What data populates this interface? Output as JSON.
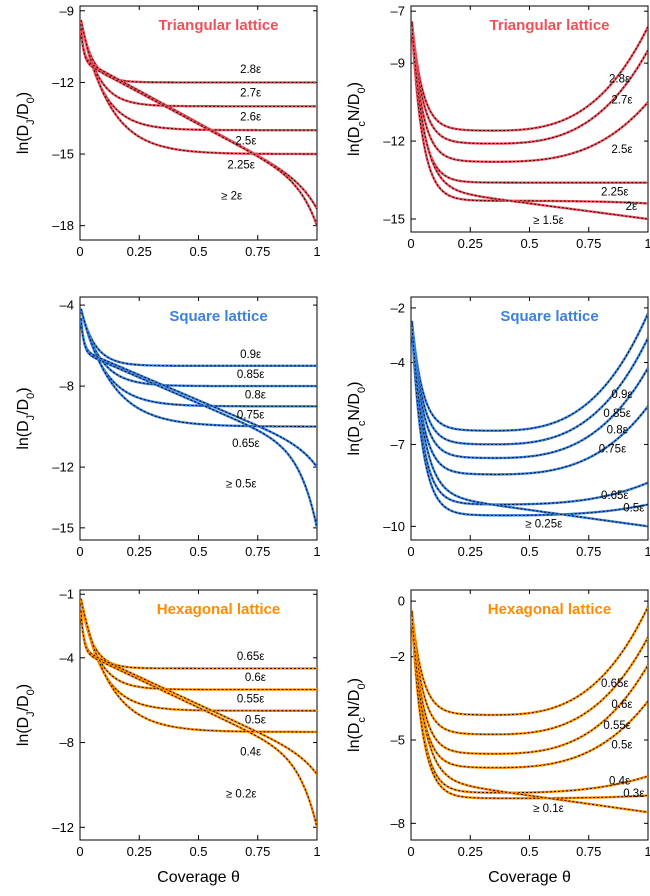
{
  "x_axis_label": "Coverage θ",
  "chart_data": [
    {
      "type": "line",
      "title": "Triangular lattice",
      "ylabel": "ln(D_J/D_0)",
      "color": "#f0505a",
      "xlim": [
        0,
        1
      ],
      "ylim": [
        -18.6,
        -8.8
      ],
      "xticks": [
        0,
        0.25,
        0.5,
        0.75,
        1
      ],
      "xtick_labels": [
        "0",
        "0.25",
        "0.5",
        "0.75",
        "1"
      ],
      "yticks": [
        -9,
        -12,
        -15,
        -18
      ],
      "ytick_labels": [
        "–9",
        "–12",
        "–15",
        "–18"
      ],
      "series": [
        {
          "name": "2.8ε",
          "kind": "plateau",
          "y0": -9.2,
          "yinf": -12.0,
          "t": 0.05,
          "label_x": 0.72,
          "label_y": -11.6
        },
        {
          "name": "2.7ε",
          "kind": "plateau",
          "y0": -9.2,
          "yinf": -13.0,
          "t": 0.07,
          "label_x": 0.72,
          "label_y": -12.6
        },
        {
          "name": "2.6ε",
          "kind": "plateau",
          "y0": -9.2,
          "yinf": -14.0,
          "t": 0.09,
          "label_x": 0.72,
          "label_y": -13.6
        },
        {
          "name": "2.5ε",
          "kind": "plateau",
          "y0": -9.2,
          "yinf": -15.0,
          "t": 0.12,
          "label_x": 0.7,
          "label_y": -14.6
        },
        {
          "name": "2.25ε",
          "kind": "tail",
          "y0": -9.2,
          "ya": -11.0,
          "yb": -16.4,
          "yend": -17.3,
          "label_x": 0.68,
          "label_y": -15.6
        },
        {
          "name": "≥ 2ε",
          "kind": "tail",
          "y0": -9.2,
          "ya": -11.1,
          "yb": -16.4,
          "yend": -18.0,
          "label_x": 0.64,
          "label_y": -16.9
        }
      ]
    },
    {
      "type": "line",
      "title": "Triangular lattice",
      "ylabel": "ln(D_cN/D_0)",
      "color": "#f0505a",
      "xlim": [
        0,
        1
      ],
      "ylim": [
        -15.5,
        -6.8
      ],
      "xticks": [
        0,
        0.25,
        0.5,
        0.75,
        1
      ],
      "xtick_labels": [
        "0",
        "0.25",
        "0.5",
        "0.75",
        "1"
      ],
      "yticks": [
        -7,
        -9,
        -12,
        -15
      ],
      "ytick_labels": [
        "–7",
        "–9",
        "–12",
        "–15"
      ],
      "series": [
        {
          "name": "2.8ε",
          "kind": "ushape",
          "y0": -7.0,
          "ymin": -11.6,
          "yend": -7.6,
          "label_x": 0.88,
          "label_y": -9.75
        },
        {
          "name": "2.7ε",
          "kind": "ushape",
          "y0": -7.0,
          "ymin": -12.1,
          "yend": -8.5,
          "label_x": 0.89,
          "label_y": -10.55
        },
        {
          "name": "2.5ε",
          "kind": "ushape",
          "y0": -7.0,
          "ymin": -12.8,
          "yend": -10.5,
          "label_x": 0.89,
          "label_y": -12.45
        },
        {
          "name": "2.25ε",
          "kind": "ushape",
          "y0": -7.0,
          "ymin": -13.6,
          "yend": -13.6,
          "label_x": 0.86,
          "label_y": -14.1
        },
        {
          "name": "2ε",
          "kind": "ushape",
          "y0": -7.0,
          "ymin": -14.3,
          "yend": -14.4,
          "label_x": 0.93,
          "label_y": -14.65
        },
        {
          "name": "≥ 1.5ε",
          "kind": "decay",
          "y0": -7.0,
          "ymin": -15.0,
          "label_x": 0.58,
          "label_y": -15.2
        }
      ]
    },
    {
      "type": "line",
      "title": "Square lattice",
      "ylabel": "ln(D_J/D_0)",
      "color": "#3a82e0",
      "xlim": [
        0,
        1
      ],
      "ylim": [
        -15.6,
        -3.6
      ],
      "xticks": [
        0,
        0.25,
        0.5,
        0.75,
        1
      ],
      "xtick_labels": [
        "0",
        "0.25",
        "0.5",
        "0.75",
        "1"
      ],
      "yticks": [
        -4,
        -8,
        -12,
        -15
      ],
      "ytick_labels": [
        "–4",
        "–8",
        "–12",
        "–15"
      ],
      "series": [
        {
          "name": "0.9ε",
          "kind": "plateau",
          "y0": -4.0,
          "yinf": -7.0,
          "t": 0.06,
          "label_x": 0.72,
          "label_y": -6.6
        },
        {
          "name": "0.85ε",
          "kind": "plateau",
          "y0": -4.0,
          "yinf": -8.0,
          "t": 0.08,
          "label_x": 0.72,
          "label_y": -7.6
        },
        {
          "name": "0.8ε",
          "kind": "plateau",
          "y0": -4.0,
          "yinf": -9.0,
          "t": 0.1,
          "label_x": 0.74,
          "label_y": -8.6
        },
        {
          "name": "0.75ε",
          "kind": "plateau",
          "y0": -4.0,
          "yinf": -10.0,
          "t": 0.13,
          "label_x": 0.72,
          "label_y": -9.6
        },
        {
          "name": "0.65ε",
          "kind": "tail",
          "y0": -4.0,
          "ya": -6.2,
          "yb": -11.2,
          "yend": -12.0,
          "label_x": 0.7,
          "label_y": -11.0
        },
        {
          "name": "≥ 0.5ε",
          "kind": "tail",
          "y0": -4.0,
          "ya": -6.3,
          "yb": -11.4,
          "yend": -15.0,
          "label_x": 0.68,
          "label_y": -13.0
        }
      ]
    },
    {
      "type": "line",
      "title": "Square lattice",
      "ylabel": "ln(D_cN/D_0)",
      "color": "#3a82e0",
      "xlim": [
        0,
        1
      ],
      "ylim": [
        -10.5,
        -1.6
      ],
      "xticks": [
        0,
        0.25,
        0.5,
        0.75,
        1
      ],
      "xtick_labels": [
        "0",
        "0.25",
        "0.5",
        "0.75",
        "1"
      ],
      "yticks": [
        -2,
        -4,
        -7,
        -10
      ],
      "ytick_labels": [
        "–2",
        "–4",
        "–7",
        "–10"
      ],
      "series": [
        {
          "name": "0.9ε",
          "kind": "ushape",
          "y0": -2.1,
          "ymin": -6.5,
          "yend": -2.2,
          "label_x": 0.89,
          "label_y": -5.3
        },
        {
          "name": "0.85ε",
          "kind": "ushape",
          "y0": -2.1,
          "ymin": -7.0,
          "yend": -3.1,
          "label_x": 0.87,
          "label_y": -6.0
        },
        {
          "name": "0.8ε",
          "kind": "ushape",
          "y0": -2.1,
          "ymin": -7.5,
          "yend": -4.2,
          "label_x": 0.87,
          "label_y": -6.6
        },
        {
          "name": "0.75ε",
          "kind": "ushape",
          "y0": -2.1,
          "ymin": -8.1,
          "yend": -5.6,
          "label_x": 0.85,
          "label_y": -7.3
        },
        {
          "name": "0.65ε",
          "kind": "ushape",
          "y0": -2.1,
          "ymin": -9.2,
          "yend": -8.4,
          "label_x": 0.86,
          "label_y": -9.0
        },
        {
          "name": "0.5ε",
          "kind": "ushape",
          "y0": -2.1,
          "ymin": -9.6,
          "yend": -9.2,
          "label_x": 0.94,
          "label_y": -9.45
        },
        {
          "name": "≥ 0.25ε",
          "kind": "decay",
          "y0": -2.1,
          "ymin": -10.0,
          "label_x": 0.56,
          "label_y": -10.05
        }
      ]
    },
    {
      "type": "line",
      "title": "Hexagonal lattice",
      "ylabel": "ln(D_J/D_0)",
      "color": "#ff8c00",
      "xlim": [
        0,
        1
      ],
      "ylim": [
        -12.6,
        -0.8
      ],
      "xticks": [
        0,
        0.25,
        0.5,
        0.75,
        1
      ],
      "xtick_labels": [
        "0",
        "0.25",
        "0.5",
        "0.75",
        "1"
      ],
      "yticks": [
        -1,
        -4,
        -8,
        -12
      ],
      "ytick_labels": [
        "–1",
        "–4",
        "–8",
        "–12"
      ],
      "series": [
        {
          "name": "0.65ε",
          "kind": "plateau",
          "y0": -1.0,
          "yinf": -4.5,
          "t": 0.05,
          "label_x": 0.72,
          "label_y": -4.1
        },
        {
          "name": "0.6ε",
          "kind": "plateau",
          "y0": -1.0,
          "yinf": -5.5,
          "t": 0.07,
          "label_x": 0.74,
          "label_y": -5.1
        },
        {
          "name": "0.55ε",
          "kind": "plateau",
          "y0": -1.0,
          "yinf": -6.5,
          "t": 0.09,
          "label_x": 0.72,
          "label_y": -6.1
        },
        {
          "name": "0.5ε",
          "kind": "plateau",
          "y0": -1.0,
          "yinf": -7.5,
          "t": 0.12,
          "label_x": 0.74,
          "label_y": -7.1
        },
        {
          "name": "0.4ε",
          "kind": "tail",
          "y0": -1.0,
          "ya": -3.6,
          "yb": -8.8,
          "yend": -9.5,
          "label_x": 0.72,
          "label_y": -8.6
        },
        {
          "name": "≥ 0.2ε",
          "kind": "tail",
          "y0": -1.0,
          "ya": -3.7,
          "yb": -9.0,
          "yend": -12.0,
          "label_x": 0.68,
          "label_y": -10.6
        }
      ]
    },
    {
      "type": "line",
      "title": "Hexagonal lattice",
      "ylabel": "ln(D_cN/D_0)",
      "color": "#ff8c00",
      "xlim": [
        0,
        1
      ],
      "ylim": [
        -8.6,
        0.4
      ],
      "xticks": [
        0,
        0.25,
        0.5,
        0.75,
        1
      ],
      "xtick_labels": [
        "0",
        "0.25",
        "0.5",
        "0.75",
        "1"
      ],
      "yticks": [
        0,
        -2,
        -5,
        -8
      ],
      "ytick_labels": [
        "0",
        "–2",
        "–5",
        "–8"
      ],
      "series": [
        {
          "name": "0.65ε",
          "kind": "ushape",
          "y0": 0.0,
          "ymin": -4.1,
          "yend": -0.2,
          "label_x": 0.86,
          "label_y": -3.1
        },
        {
          "name": "0.6ε",
          "kind": "ushape",
          "y0": 0.0,
          "ymin": -4.8,
          "yend": -1.3,
          "label_x": 0.89,
          "label_y": -3.85
        },
        {
          "name": "0.55ε",
          "kind": "ushape",
          "y0": 0.0,
          "ymin": -5.5,
          "yend": -2.3,
          "label_x": 0.87,
          "label_y": -4.6
        },
        {
          "name": "0.5ε",
          "kind": "ushape",
          "y0": 0.0,
          "ymin": -6.0,
          "yend": -3.6,
          "label_x": 0.89,
          "label_y": -5.3
        },
        {
          "name": "0.4ε",
          "kind": "ushape",
          "y0": 0.0,
          "ymin": -6.9,
          "yend": -6.3,
          "label_x": 0.88,
          "label_y": -6.6
        },
        {
          "name": "0.3ε",
          "kind": "ushape",
          "y0": 0.0,
          "ymin": -7.1,
          "yend": -7.0,
          "label_x": 0.94,
          "label_y": -7.05
        },
        {
          "name": "≥ 0.1ε",
          "kind": "decay",
          "y0": 0.0,
          "ymin": -7.6,
          "label_x": 0.58,
          "label_y": -7.6
        }
      ]
    }
  ]
}
